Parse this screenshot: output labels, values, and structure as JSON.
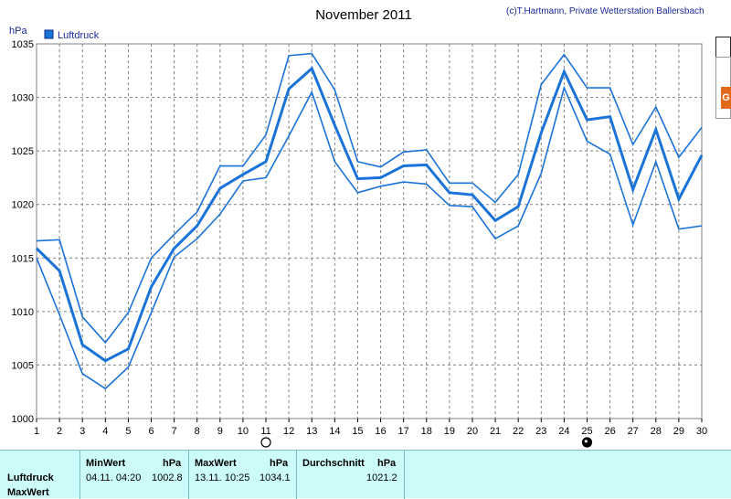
{
  "chart_data": {
    "type": "line",
    "title": "November 2011",
    "credit": "(c)T.Hartmann, Private Wetterstation Ballersbach",
    "ylabel": "hPa",
    "legend": {
      "label": "Luftdruck",
      "color": "#1a73d9",
      "position": "top-left"
    },
    "ylim": [
      1000,
      1035
    ],
    "yticks": [
      "1000",
      "1005",
      "1010",
      "1015",
      "1020",
      "1025",
      "1030",
      "1035"
    ],
    "xlim": [
      1,
      30
    ],
    "x": [
      1,
      2,
      3,
      4,
      5,
      6,
      7,
      8,
      9,
      10,
      11,
      12,
      13,
      14,
      15,
      16,
      17,
      18,
      19,
      20,
      21,
      22,
      23,
      24,
      25,
      26,
      27,
      28,
      29,
      30
    ],
    "grid": true,
    "moon_markers": [
      {
        "day": 11,
        "phase": "full"
      },
      {
        "day": 25,
        "phase": "new"
      }
    ],
    "series": [
      {
        "role": "max",
        "values": [
          1016.6,
          1016.7,
          1009.5,
          1007.1,
          1009.9,
          1015.0,
          1017.2,
          1019.3,
          1023.6,
          1023.6,
          1026.5,
          1033.9,
          1034.1,
          1030.7,
          1024.0,
          1023.5,
          1024.9,
          1025.1,
          1022.0,
          1022.0,
          1020.2,
          1022.8,
          1031.2,
          1034.0,
          1030.9,
          1030.9,
          1025.6,
          1029.1,
          1024.4,
          1027.2
        ]
      },
      {
        "role": "avg",
        "values": [
          1015.9,
          1013.8,
          1006.9,
          1005.4,
          1006.5,
          1012.3,
          1015.9,
          1018.0,
          1021.5,
          1022.8,
          1024.0,
          1030.8,
          1032.7,
          1027.4,
          1022.4,
          1022.5,
          1023.6,
          1023.7,
          1021.1,
          1020.9,
          1018.5,
          1019.8,
          1026.7,
          1032.4,
          1027.9,
          1028.2,
          1021.4,
          1027.0,
          1020.5,
          1024.6
        ]
      },
      {
        "role": "min",
        "values": [
          1015.0,
          1009.7,
          1004.2,
          1002.8,
          1004.8,
          1009.9,
          1015.1,
          1016.8,
          1019.1,
          1022.2,
          1022.5,
          1026.4,
          1030.5,
          1024.0,
          1021.1,
          1021.7,
          1022.1,
          1021.9,
          1019.9,
          1019.8,
          1016.8,
          1018.0,
          1022.9,
          1030.9,
          1025.9,
          1024.7,
          1018.1,
          1024.0,
          1017.7,
          1018.0
        ]
      }
    ]
  },
  "summary_table": {
    "row_labels": [
      "Luftdruck",
      "MaxWert"
    ],
    "min": {
      "header": "MinWert",
      "unit": "hPa",
      "datetime": "04.11.  04:20",
      "value": "1002.8"
    },
    "max": {
      "header": "MaxWert",
      "unit": "hPa",
      "datetime": "13.11.  10:25",
      "value": "1034.1"
    },
    "avg": {
      "header": "Durchschnitt",
      "unit": "hPa",
      "value": "1021.2"
    }
  },
  "side_strip": {
    "badge": "G"
  }
}
